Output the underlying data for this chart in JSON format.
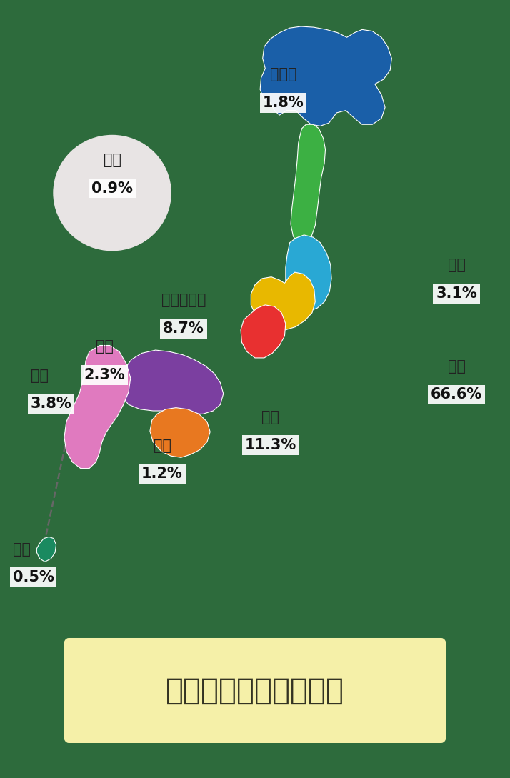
{
  "bg_color": "#2d6b3c",
  "title": "在学生地域別統計資料",
  "title_box_color": "#f5f0a8",
  "title_fontsize": 30,
  "label_color": "#222222",
  "pct_color": "#111111",
  "white_box_color": "#ffffff",
  "kaigai_color": "#e8e4e4",
  "okinawa_line_color": "#555555",
  "regions": [
    {
      "name": "北海道",
      "pct": "1.8%",
      "color": "#1a5fa8",
      "nx": 0.555,
      "ny": 0.885
    },
    {
      "name": "東北",
      "pct": "3.1%",
      "color": "#3cb043",
      "nx": 0.895,
      "ny": 0.64
    },
    {
      "name": "関東",
      "pct": "66.6%",
      "color": "#29a8d4",
      "nx": 0.895,
      "ny": 0.51
    },
    {
      "name": "中部・北陸",
      "pct": "8.7%",
      "color": "#e8b800",
      "nx": 0.36,
      "ny": 0.595
    },
    {
      "name": "関西",
      "pct": "11.3%",
      "color": "#e83030",
      "nx": 0.53,
      "ny": 0.445
    },
    {
      "name": "中国",
      "pct": "2.3%",
      "color": "#7b3fa0",
      "nx": 0.205,
      "ny": 0.535
    },
    {
      "name": "四国",
      "pct": "1.2%",
      "color": "#e87820",
      "nx": 0.318,
      "ny": 0.408
    },
    {
      "name": "九州",
      "pct": "3.8%",
      "color": "#e07abf",
      "nx": 0.06,
      "ny": 0.498
    },
    {
      "name": "沖縄",
      "pct": "0.5%",
      "color": "#1a8a60",
      "nx": 0.025,
      "ny": 0.275
    },
    {
      "name": "海外",
      "pct": "0.9%",
      "color": "#e8e4e4",
      "nx": 0.22,
      "ny": 0.775
    }
  ]
}
